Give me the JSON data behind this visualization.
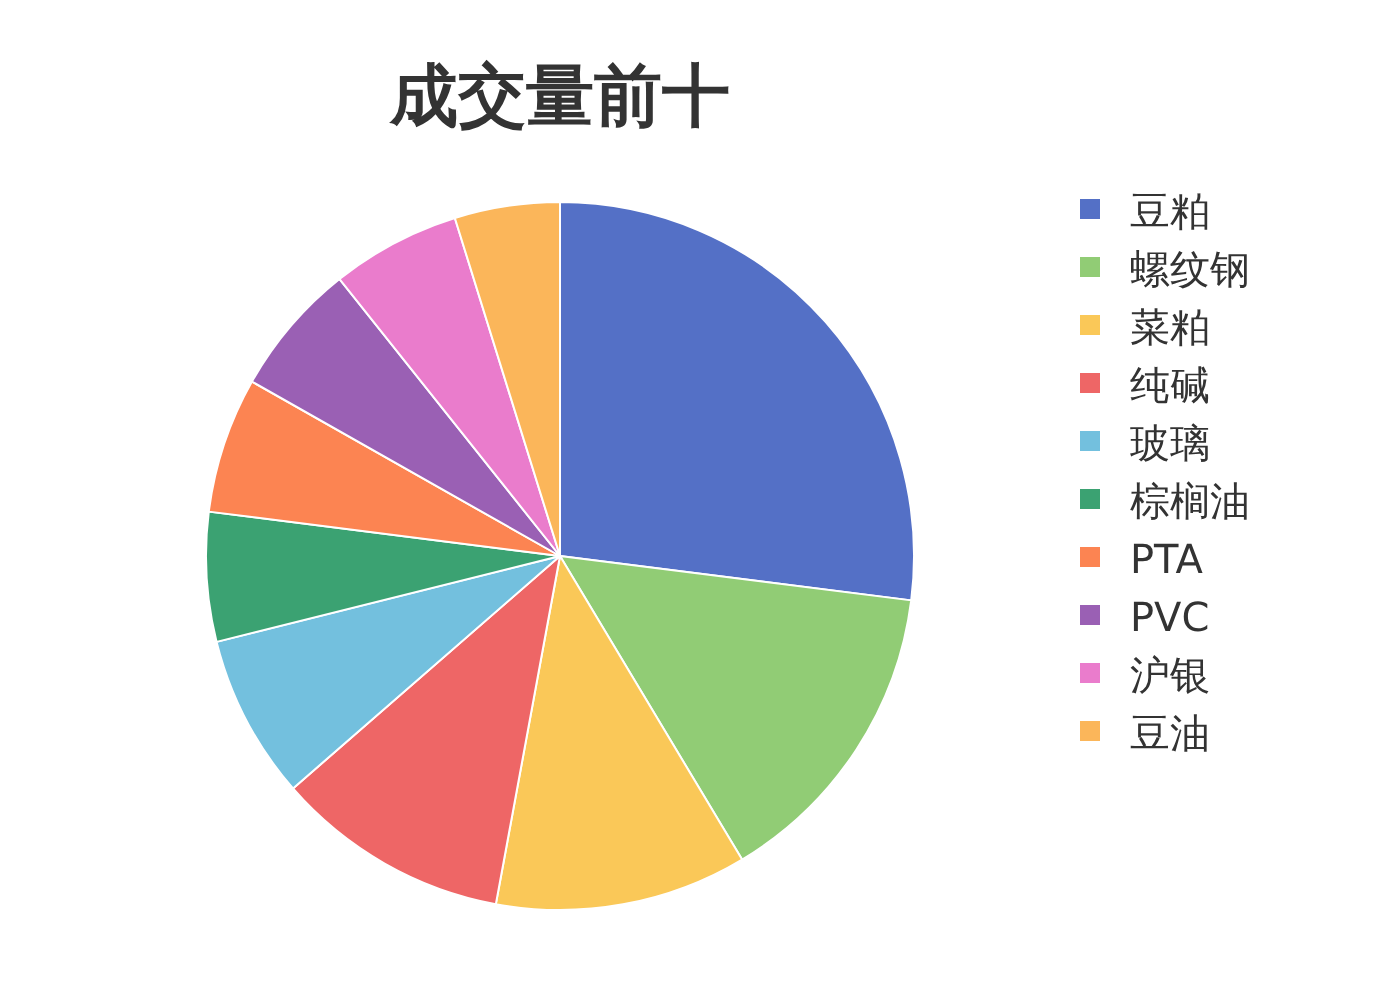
{
  "chart_data": {
    "type": "pie",
    "title": "成交量前十",
    "categories": [
      "豆粕",
      "螺纹钢",
      "菜粕",
      "纯碱",
      "玻璃",
      "棕榈油",
      "PTA",
      "PVC",
      "沪银",
      "豆油"
    ],
    "values": [
      27,
      14.4,
      11.5,
      10.7,
      7.5,
      5.9,
      6.2,
      6.1,
      5.9,
      4.8
    ],
    "colors": [
      "#5470c6",
      "#91cc75",
      "#fac858",
      "#ee6666",
      "#73c0de",
      "#3ba272",
      "#fc8452",
      "#9a60b4",
      "#ea7ccc",
      "#fbb65a"
    ],
    "legend": "right"
  }
}
